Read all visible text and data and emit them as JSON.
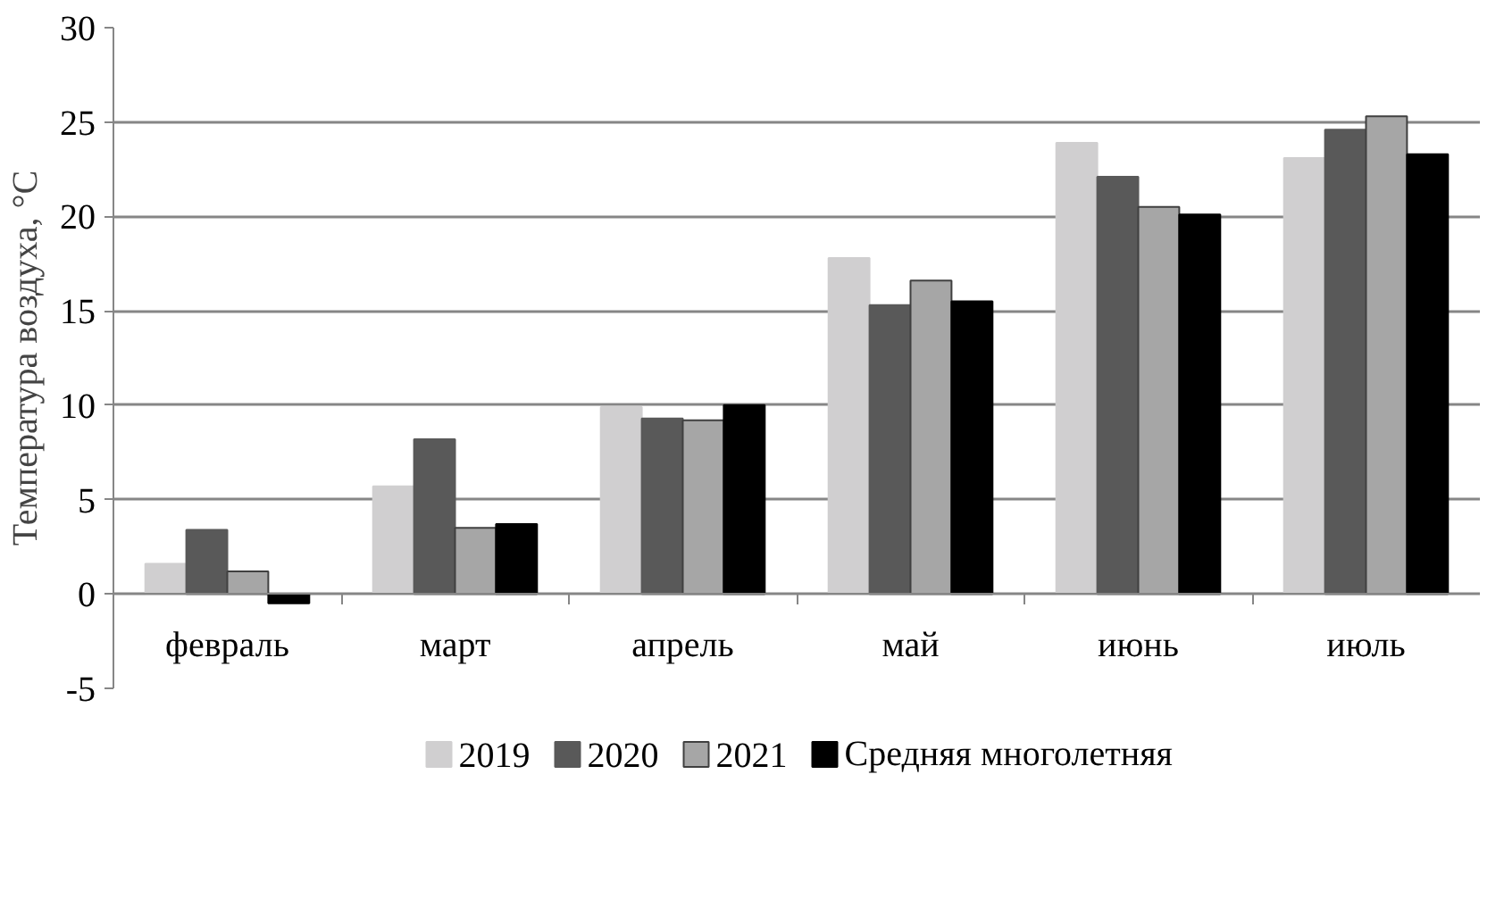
{
  "chart_data": {
    "type": "bar",
    "ylabel": "Температура воздуха, °C",
    "categories": [
      "февраль",
      "март",
      "апрель",
      "май",
      "июнь",
      "июль"
    ],
    "series": [
      {
        "name": "2019",
        "color": "#d0cfd0",
        "values": [
          1.6,
          5.7,
          9.9,
          17.8,
          23.9,
          23.1
        ]
      },
      {
        "name": "2020",
        "color": "#595959",
        "values": [
          3.4,
          8.2,
          9.3,
          15.3,
          22.1,
          24.6
        ]
      },
      {
        "name": "2021",
        "color": "#a6a6a6",
        "values": [
          1.2,
          3.5,
          9.2,
          16.6,
          20.5,
          25.3
        ]
      },
      {
        "name": "Средняя многолетняя",
        "color": "#000000",
        "values": [
          -0.5,
          3.7,
          10.0,
          15.5,
          20.1,
          23.3
        ]
      }
    ],
    "ylim": [
      -5,
      30
    ],
    "yticks": [
      -5,
      0,
      5,
      10,
      15,
      20,
      25,
      30
    ],
    "grid": "y",
    "legend": "bottom"
  }
}
